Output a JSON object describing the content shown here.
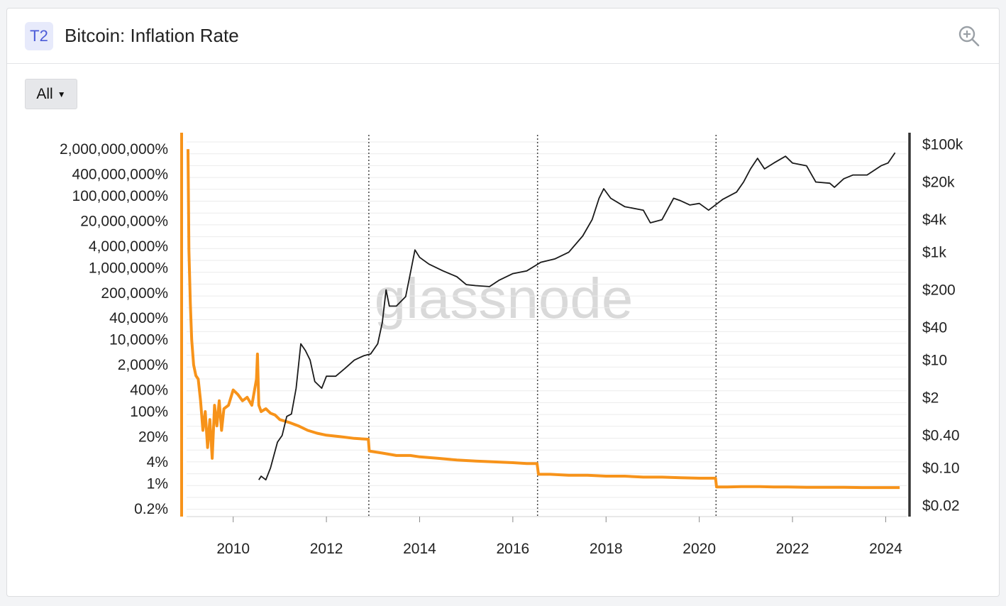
{
  "header": {
    "tier_badge": "T2",
    "title": "Bitcoin: Inflation Rate"
  },
  "controls": {
    "range_label": "All"
  },
  "watermark": "glassnode",
  "icons": {
    "zoom": "zoom-in-icon",
    "dropdown": "caret-down-icon"
  },
  "colors": {
    "inflation": "#f7931a",
    "price": "#1a1a1a",
    "grid": "#ebebeb",
    "right_axis": "#333333"
  },
  "chart_data": {
    "type": "line",
    "title": "Bitcoin: Inflation Rate",
    "x_axis": {
      "ticks": [
        "2010",
        "2012",
        "2014",
        "2016",
        "2018",
        "2020",
        "2022",
        "2024"
      ],
      "range": [
        2009.0,
        2024.45
      ]
    },
    "y_left": {
      "scale": "log",
      "ticks": [
        "2,000,000,000%",
        "400,000,000%",
        "100,000,000%",
        "20,000,000%",
        "4,000,000%",
        "1,000,000%",
        "200,000%",
        "40,000%",
        "10,000%",
        "2,000%",
        "400%",
        "100%",
        "20%",
        "4%",
        "1%",
        "0.2%"
      ],
      "tick_values": [
        2000000000,
        400000000,
        100000000,
        20000000,
        4000000,
        1000000,
        200000,
        40000,
        10000,
        2000,
        400,
        100,
        20,
        4,
        1,
        0.2
      ],
      "range": [
        0.12,
        5000000000
      ]
    },
    "y_right": {
      "scale": "log",
      "ticks": [
        "$100k",
        "$20k",
        "$4k",
        "$1k",
        "$200",
        "$40",
        "$10",
        "$2",
        "$0.40",
        "$0.10",
        "$0.02"
      ],
      "tick_values": [
        100000,
        20000,
        4000,
        1000,
        200,
        40,
        10,
        2,
        0.4,
        0.1,
        0.02
      ],
      "range": [
        0.0125,
        150000
      ]
    },
    "halvings": [
      2012.91,
      2016.53,
      2020.36
    ],
    "series": [
      {
        "axis": "left",
        "x": [
          2009.03,
          2009.05,
          2009.08,
          2009.11,
          2009.15,
          2009.2,
          2009.25,
          2009.3,
          2009.35,
          2009.4,
          2009.45,
          2009.5,
          2009.55,
          2009.6,
          2009.65,
          2009.7,
          2009.75,
          2009.8,
          2009.9,
          2010.0,
          2010.1,
          2010.2,
          2010.3,
          2010.4,
          2010.5,
          2010.52,
          2010.55,
          2010.6,
          2010.7,
          2010.8,
          2010.9,
          2011.0,
          2011.2,
          2011.4,
          2011.6,
          2011.8,
          2012.0,
          2012.3,
          2012.6,
          2012.9,
          2012.92,
          2013.2,
          2013.5,
          2013.8,
          2014.0,
          2014.4,
          2014.8,
          2015.2,
          2015.6,
          2016.0,
          2016.3,
          2016.52,
          2016.55,
          2016.8,
          2017.2,
          2017.6,
          2018.0,
          2018.4,
          2018.8,
          2019.2,
          2019.6,
          2020.0,
          2020.35,
          2020.37,
          2020.6,
          2020.9,
          2021.3,
          2021.6,
          2021.9,
          2022.3,
          2022.7,
          2023.1,
          2023.5,
          2023.9,
          2024.3
        ],
        "values": [
          2000000000,
          3000000,
          100000,
          10000,
          2000,
          1000,
          800,
          200,
          30,
          100,
          10,
          60,
          5,
          150,
          40,
          200,
          30,
          120,
          150,
          400,
          300,
          200,
          250,
          150,
          800,
          4000,
          150,
          100,
          120,
          90,
          80,
          60,
          50,
          40,
          30,
          25,
          22,
          20,
          18,
          17,
          8,
          7,
          6,
          6,
          5.5,
          5,
          4.5,
          4.2,
          4,
          3.8,
          3.6,
          3.6,
          1.8,
          1.8,
          1.7,
          1.7,
          1.6,
          1.6,
          1.5,
          1.5,
          1.45,
          1.4,
          1.4,
          0.8,
          0.8,
          0.82,
          0.82,
          0.8,
          0.8,
          0.78,
          0.78,
          0.78,
          0.77,
          0.77,
          0.77
        ]
      },
      {
        "axis": "right",
        "x": [
          2010.55,
          2010.6,
          2010.7,
          2010.8,
          2010.95,
          2011.05,
          2011.15,
          2011.25,
          2011.35,
          2011.45,
          2011.55,
          2011.65,
          2011.75,
          2011.9,
          2012.0,
          2012.2,
          2012.4,
          2012.6,
          2012.8,
          2012.95,
          2013.1,
          2013.2,
          2013.28,
          2013.35,
          2013.5,
          2013.7,
          2013.8,
          2013.9,
          2014.0,
          2014.2,
          2014.5,
          2014.8,
          2015.0,
          2015.2,
          2015.5,
          2015.7,
          2016.0,
          2016.3,
          2016.6,
          2016.9,
          2017.2,
          2017.5,
          2017.7,
          2017.85,
          2017.95,
          2018.1,
          2018.4,
          2018.8,
          2018.95,
          2019.2,
          2019.45,
          2019.6,
          2019.8,
          2020.0,
          2020.2,
          2020.5,
          2020.8,
          2020.95,
          2021.1,
          2021.25,
          2021.4,
          2021.6,
          2021.85,
          2022.0,
          2022.3,
          2022.5,
          2022.8,
          2022.9,
          2023.1,
          2023.3,
          2023.6,
          2023.9,
          2024.05,
          2024.2
        ],
        "values": [
          0.06,
          0.07,
          0.06,
          0.1,
          0.3,
          0.4,
          0.9,
          1.0,
          3.0,
          20,
          15,
          10,
          4,
          3,
          5,
          5,
          7,
          10,
          12,
          13,
          20,
          50,
          200,
          100,
          100,
          150,
          400,
          1100,
          800,
          600,
          450,
          350,
          250,
          240,
          230,
          300,
          400,
          450,
          650,
          750,
          1000,
          2000,
          4000,
          10000,
          15000,
          10000,
          7000,
          6000,
          3500,
          4000,
          10000,
          9000,
          7500,
          8000,
          6000,
          9500,
          13000,
          20000,
          35000,
          55000,
          35000,
          45000,
          60000,
          45000,
          40000,
          20000,
          19000,
          16000,
          23000,
          27000,
          27000,
          40000,
          45000,
          70000
        ]
      }
    ]
  }
}
